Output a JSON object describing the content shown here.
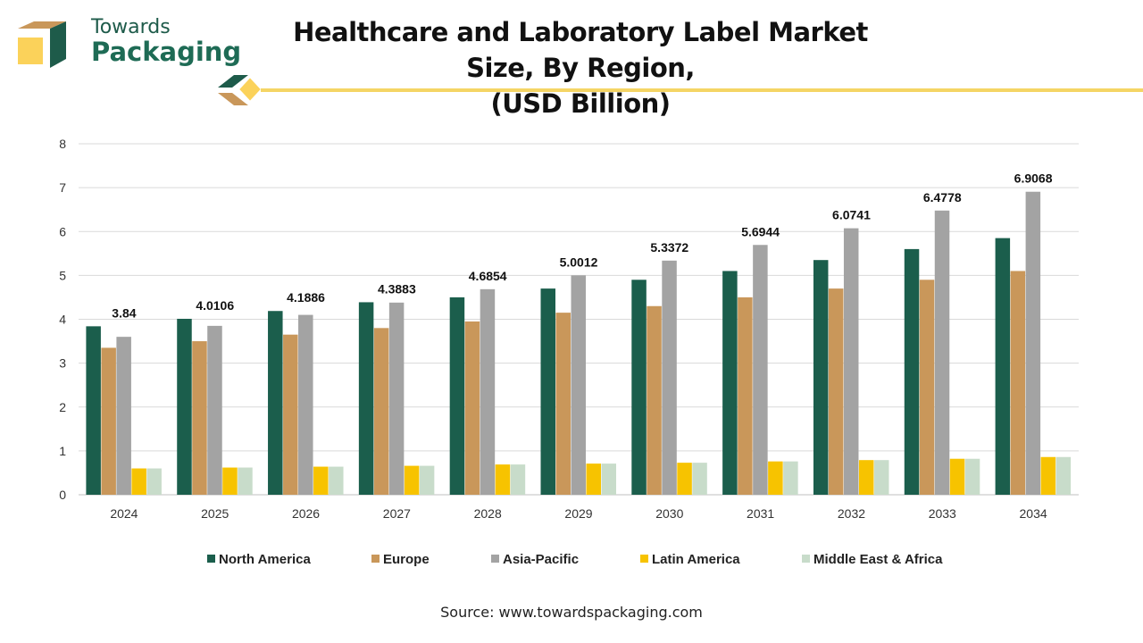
{
  "brand": {
    "line1": "Towards",
    "line2": "Packaging"
  },
  "colors": {
    "brand_green": "#1e5b4a",
    "brand_yellow": "#fbd25a",
    "brand_tan": "#c9975a",
    "accent_line": "#f5d565"
  },
  "source_text": "Source: www.towardspackaging.com",
  "chart_data": {
    "type": "bar",
    "title": "Healthcare and Laboratory Label Market Size, By Region, (USD Billion)",
    "title_lines": [
      "Healthcare and Laboratory Label Market Size, By Region,",
      "(USD Billion)"
    ],
    "xlabel": "",
    "ylabel": "",
    "ylim": [
      0,
      8
    ],
    "yticks": [
      0,
      1,
      2,
      3,
      4,
      5,
      6,
      7,
      8
    ],
    "grid": true,
    "legend_position": "bottom",
    "categories": [
      "2024",
      "2025",
      "2026",
      "2027",
      "2028",
      "2029",
      "2030",
      "2031",
      "2032",
      "2033",
      "2034"
    ],
    "series": [
      {
        "name": "North America",
        "color": "#1b5e4c",
        "values": [
          3.84,
          4.0106,
          4.1886,
          4.3883,
          4.5,
          4.7,
          4.9,
          5.1,
          5.35,
          5.6,
          5.85
        ]
      },
      {
        "name": "Europe",
        "color": "#c9975a",
        "values": [
          3.35,
          3.5,
          3.65,
          3.8,
          3.95,
          4.15,
          4.3,
          4.5,
          4.7,
          4.9,
          5.1
        ]
      },
      {
        "name": "Asia-Pacific",
        "color": "#a3a3a3",
        "values": [
          3.6,
          3.85,
          4.1,
          4.38,
          4.6854,
          5.0012,
          5.3372,
          5.6944,
          6.0741,
          6.4778,
          6.9068
        ]
      },
      {
        "name": "Latin America",
        "color": "#f7c300",
        "values": [
          0.6,
          0.62,
          0.64,
          0.66,
          0.69,
          0.71,
          0.73,
          0.76,
          0.79,
          0.82,
          0.86
        ]
      },
      {
        "name": "Middle East & Africa",
        "color": "#c8dcca",
        "values": [
          0.6,
          0.62,
          0.64,
          0.66,
          0.69,
          0.71,
          0.73,
          0.76,
          0.79,
          0.82,
          0.86
        ]
      }
    ],
    "data_labels": [
      {
        "category": "2024",
        "text": "3.84"
      },
      {
        "category": "2025",
        "text": "4.0106"
      },
      {
        "category": "2026",
        "text": "4.1886"
      },
      {
        "category": "2027",
        "text": "4.3883"
      },
      {
        "category": "2028",
        "text": "4.6854"
      },
      {
        "category": "2029",
        "text": "5.0012"
      },
      {
        "category": "2030",
        "text": "5.3372"
      },
      {
        "category": "2031",
        "text": "5.6944"
      },
      {
        "category": "2032",
        "text": "6.0741"
      },
      {
        "category": "2033",
        "text": "6.4778"
      },
      {
        "category": "2034",
        "text": "6.9068"
      }
    ]
  }
}
